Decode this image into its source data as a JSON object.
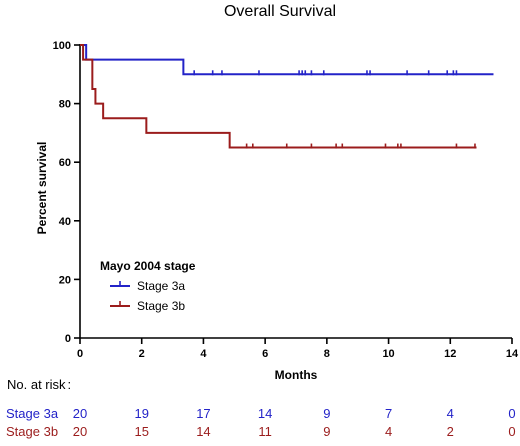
{
  "chart_data": {
    "type": "line",
    "title": "Overall Survival",
    "xlabel": "Months",
    "ylabel": "Percent survival",
    "xlim": [
      0,
      14
    ],
    "ylim": [
      0,
      100
    ],
    "x_ticks": [
      "0",
      "2",
      "4",
      "6",
      "8",
      "10",
      "12",
      "14"
    ],
    "y_ticks": [
      "0",
      "20",
      "40",
      "60",
      "80",
      "100"
    ],
    "grid": false,
    "legend": {
      "title": "Mayo 2004 stage",
      "placement": "lower-left"
    },
    "series": [
      {
        "name": "Stage 3a",
        "color": "#2323c8",
        "steps": [
          [
            0,
            100
          ],
          [
            0.2,
            95
          ],
          [
            3.35,
            90
          ],
          [
            13.4,
            90
          ]
        ],
        "censored": [
          3.7,
          4.3,
          4.6,
          5.8,
          7.1,
          7.2,
          7.3,
          7.5,
          7.9,
          9.3,
          9.4,
          10.6,
          11.3,
          11.9,
          12.1,
          12.2
        ]
      },
      {
        "name": "Stage 3b",
        "color": "#9b1c1c",
        "steps": [
          [
            0,
            100
          ],
          [
            0.1,
            95
          ],
          [
            0.4,
            85
          ],
          [
            0.5,
            80
          ],
          [
            0.75,
            75
          ],
          [
            2.15,
            70
          ],
          [
            4.85,
            65
          ],
          [
            12.85,
            65
          ]
        ],
        "censored": [
          5.4,
          5.6,
          6.7,
          7.5,
          8.3,
          8.5,
          9.9,
          10.3,
          10.4,
          12.2,
          12.8
        ]
      }
    ],
    "risk_table": {
      "heading": "No. at risk",
      "x": [
        0,
        2,
        4,
        6,
        8,
        10,
        12,
        14
      ],
      "rows": [
        {
          "label": "Stage 3a",
          "color": "#2323c8",
          "values": [
            "20",
            "19",
            "17",
            "14",
            "9",
            "7",
            "4",
            "0"
          ]
        },
        {
          "label": "Stage 3b",
          "color": "#9b1c1c",
          "values": [
            "20",
            "15",
            "14",
            "11",
            "9",
            "4",
            "2",
            "0"
          ]
        }
      ]
    }
  }
}
